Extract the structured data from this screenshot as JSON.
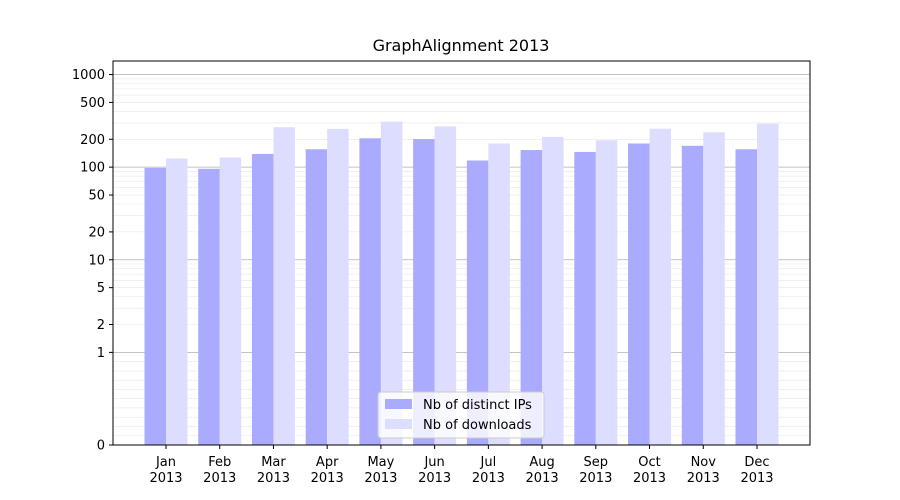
{
  "chart_data": {
    "type": "bar",
    "title": "GraphAlignment 2013",
    "xlabel": "",
    "ylabel": "",
    "yscale": "symlog",
    "ylim": [
      0,
      1400
    ],
    "yticks": [
      0,
      1,
      2,
      5,
      10,
      20,
      50,
      100,
      200,
      500,
      1000
    ],
    "grid": "y-major-and-minor",
    "legend_position": "bottom-center",
    "categories": [
      [
        "Jan",
        "2013"
      ],
      [
        "Feb",
        "2013"
      ],
      [
        "Mar",
        "2013"
      ],
      [
        "Apr",
        "2013"
      ],
      [
        "May",
        "2013"
      ],
      [
        "Jun",
        "2013"
      ],
      [
        "Jul",
        "2013"
      ],
      [
        "Aug",
        "2013"
      ],
      [
        "Sep",
        "2013"
      ],
      [
        "Oct",
        "2013"
      ],
      [
        "Nov",
        "2013"
      ],
      [
        "Dec",
        "2013"
      ]
    ],
    "series": [
      {
        "name": "Nb of distinct IPs",
        "color": "#aaaaff",
        "values": [
          98,
          96,
          139,
          156,
          205,
          201,
          118,
          153,
          146,
          180,
          170,
          156
        ]
      },
      {
        "name": "Nb of downloads",
        "color": "#ddddff",
        "values": [
          124,
          127,
          270,
          259,
          310,
          275,
          180,
          212,
          195,
          260,
          238,
          295
        ]
      }
    ]
  }
}
